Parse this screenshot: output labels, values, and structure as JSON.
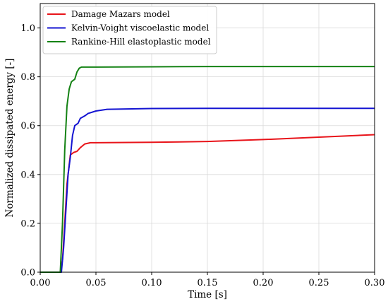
{
  "chart_data": {
    "type": "line",
    "title": "",
    "xlabel": "Time [s]",
    "ylabel": "Normalized dissipated energy [-]",
    "xlim": [
      0.0,
      0.3
    ],
    "ylim": [
      0.0,
      1.1
    ],
    "xticks": [
      0.0,
      0.05,
      0.1,
      0.15,
      0.2,
      0.25,
      0.3
    ],
    "xtick_labels": [
      "0.00",
      "0.05",
      "0.10",
      "0.15",
      "0.20",
      "0.25",
      "0.30"
    ],
    "yticks": [
      0.0,
      0.2,
      0.4,
      0.6,
      0.8,
      1.0
    ],
    "ytick_labels": [
      "0.0",
      "0.2",
      "0.4",
      "0.6",
      "0.8",
      "1.0"
    ],
    "grid": true,
    "legend_position": "upper-left",
    "series": [
      {
        "name": "Damage Mazars model",
        "color": "#e8141a",
        "points": [
          [
            0.0,
            0.0
          ],
          [
            0.018,
            0.0
          ],
          [
            0.02,
            0.05
          ],
          [
            0.022,
            0.2
          ],
          [
            0.024,
            0.36
          ],
          [
            0.026,
            0.44
          ],
          [
            0.027,
            0.48
          ],
          [
            0.03,
            0.49
          ],
          [
            0.033,
            0.495
          ],
          [
            0.036,
            0.51
          ],
          [
            0.04,
            0.525
          ],
          [
            0.045,
            0.53
          ],
          [
            0.05,
            0.53
          ],
          [
            0.1,
            0.532
          ],
          [
            0.15,
            0.535
          ],
          [
            0.2,
            0.543
          ],
          [
            0.25,
            0.553
          ],
          [
            0.3,
            0.563
          ]
        ]
      },
      {
        "name": "Kelvin-Voight viscoelastic model",
        "color": "#1414d2",
        "points": [
          [
            0.0,
            0.0
          ],
          [
            0.019,
            0.0
          ],
          [
            0.021,
            0.1
          ],
          [
            0.023,
            0.25
          ],
          [
            0.025,
            0.4
          ],
          [
            0.027,
            0.47
          ],
          [
            0.029,
            0.56
          ],
          [
            0.031,
            0.6
          ],
          [
            0.034,
            0.61
          ],
          [
            0.036,
            0.63
          ],
          [
            0.04,
            0.64
          ],
          [
            0.043,
            0.65
          ],
          [
            0.05,
            0.66
          ],
          [
            0.06,
            0.667
          ],
          [
            0.1,
            0.67
          ],
          [
            0.15,
            0.671
          ],
          [
            0.2,
            0.671
          ],
          [
            0.25,
            0.671
          ],
          [
            0.3,
            0.671
          ]
        ]
      },
      {
        "name": "Rankine-Hill elastoplastic model",
        "color": "#148214",
        "points": [
          [
            0.0,
            0.0
          ],
          [
            0.018,
            0.0
          ],
          [
            0.02,
            0.2
          ],
          [
            0.022,
            0.5
          ],
          [
            0.024,
            0.68
          ],
          [
            0.026,
            0.75
          ],
          [
            0.028,
            0.78
          ],
          [
            0.031,
            0.79
          ],
          [
            0.033,
            0.82
          ],
          [
            0.035,
            0.835
          ],
          [
            0.037,
            0.84
          ],
          [
            0.05,
            0.84
          ],
          [
            0.1,
            0.841
          ],
          [
            0.15,
            0.842
          ],
          [
            0.2,
            0.842
          ],
          [
            0.25,
            0.842
          ],
          [
            0.3,
            0.842
          ]
        ]
      }
    ]
  }
}
